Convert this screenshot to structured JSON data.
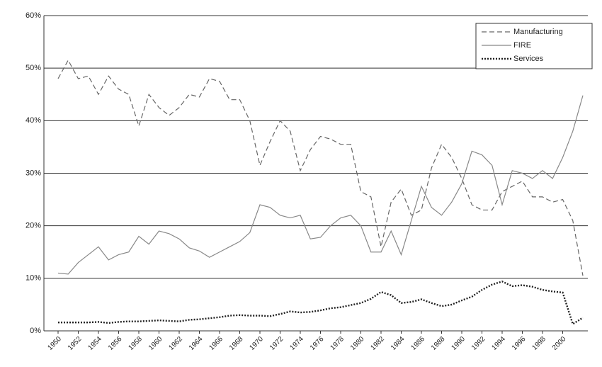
{
  "chart_data": {
    "type": "line",
    "x": [
      1950,
      1951,
      1952,
      1953,
      1954,
      1955,
      1956,
      1957,
      1958,
      1959,
      1960,
      1961,
      1962,
      1963,
      1964,
      1965,
      1966,
      1967,
      1968,
      1969,
      1970,
      1971,
      1972,
      1973,
      1974,
      1975,
      1976,
      1977,
      1978,
      1979,
      1980,
      1981,
      1982,
      1983,
      1984,
      1985,
      1986,
      1987,
      1988,
      1989,
      1990,
      1991,
      1992,
      1993,
      1994,
      1995,
      1996,
      1997,
      1998,
      1999,
      2000,
      2001,
      2002
    ],
    "series": [
      {
        "name": "Manufacturing",
        "color": "#666666",
        "linestyle": "dashed",
        "values": [
          48,
          51.5,
          48,
          48.5,
          45,
          48.5,
          46,
          45,
          39,
          45,
          42.5,
          41,
          42.5,
          45,
          44.5,
          48,
          47.5,
          44,
          44,
          40,
          31.5,
          36,
          40,
          38,
          30.5,
          34.5,
          37,
          36.5,
          35.5,
          35.5,
          26.5,
          25.5,
          16,
          24.5,
          27,
          22,
          23,
          31,
          35.5,
          33,
          29,
          24,
          23,
          23,
          26.5,
          27.5,
          28.5,
          25.5,
          25.5,
          24.5,
          25,
          21,
          10.5
        ]
      },
      {
        "name": "FIRE",
        "color": "#888888",
        "linestyle": "solid",
        "values": [
          11,
          10.8,
          13,
          14.5,
          16,
          13.5,
          14.5,
          15,
          18,
          16.5,
          19,
          18.5,
          17.5,
          15.8,
          15.2,
          14,
          15,
          16,
          17,
          18.7,
          24,
          23.5,
          22,
          21.5,
          22,
          17.5,
          17.8,
          20,
          21.5,
          22,
          20,
          15,
          15,
          19,
          14.5,
          21,
          27.5,
          23.5,
          22,
          24.5,
          28,
          34.2,
          33.5,
          31.5,
          24,
          30.5,
          30,
          29,
          30.5,
          29,
          33,
          38,
          44.8
        ]
      },
      {
        "name": "Services",
        "color": "#222222",
        "linestyle": "dotted",
        "values": [
          1.6,
          1.6,
          1.6,
          1.6,
          1.7,
          1.5,
          1.7,
          1.8,
          1.8,
          1.9,
          2.0,
          1.9,
          1.8,
          2.1,
          2.2,
          2.4,
          2.6,
          2.9,
          3.0,
          2.9,
          2.9,
          2.8,
          3.2,
          3.7,
          3.5,
          3.6,
          3.9,
          4.3,
          4.5,
          4.9,
          5.3,
          6.1,
          7.4,
          6.8,
          5.3,
          5.5,
          6.0,
          5.3,
          4.7,
          5.0,
          5.8,
          6.5,
          7.8,
          8.8,
          9.4,
          8.5,
          8.7,
          8.4,
          7.8,
          7.5,
          7.3,
          1.3,
          2.5
        ]
      }
    ],
    "xlim": [
      1950,
      2002
    ],
    "xticks": [
      1950,
      1952,
      1954,
      1956,
      1958,
      1960,
      1962,
      1964,
      1966,
      1968,
      1970,
      1972,
      1974,
      1976,
      1978,
      1980,
      1982,
      1984,
      1986,
      1988,
      1990,
      1992,
      1994,
      1996,
      1998,
      2000
    ],
    "ylim": [
      0,
      60
    ],
    "yticks": [
      {
        "value": 0,
        "label": "0%"
      },
      {
        "value": 10,
        "label": "10%"
      },
      {
        "value": 20,
        "label": "20%"
      },
      {
        "value": 30,
        "label": "30%"
      },
      {
        "value": 40,
        "label": "40%"
      },
      {
        "value": 50,
        "label": "50%"
      },
      {
        "value": 60,
        "label": "60%"
      }
    ],
    "grid": true,
    "legend": "upper right"
  }
}
